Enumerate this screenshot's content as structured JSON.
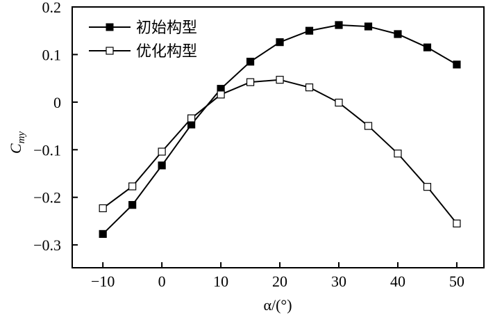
{
  "chart_data": {
    "type": "line",
    "title": "",
    "xlabel": "α/(°)",
    "ylabel_main": "C",
    "ylabel_sub": "my",
    "xlim": [
      -15.2,
      54.6
    ],
    "ylim": [
      -0.348,
      0.2
    ],
    "xticks": [
      -10,
      0,
      10,
      20,
      30,
      40,
      50
    ],
    "xtick_labels": [
      "−10",
      "0",
      "10",
      "20",
      "30",
      "40",
      "50"
    ],
    "yticks": [
      0.2,
      0.1,
      0,
      -0.1,
      -0.2,
      -0.3
    ],
    "ytick_labels": [
      "0.2",
      "0.1",
      "0",
      "−0.1",
      "−0.2",
      "−0.3"
    ],
    "grid": false,
    "legend_position": "top-left",
    "x": [
      -10,
      -5,
      0,
      5,
      10,
      15,
      20,
      25,
      30,
      35,
      40,
      45,
      50
    ],
    "series": [
      {
        "name": "初始构型",
        "marker": "filled-square",
        "values": [
          -0.277,
          -0.216,
          -0.133,
          -0.047,
          0.028,
          0.085,
          0.126,
          0.15,
          0.162,
          0.159,
          0.143,
          0.115,
          0.079
        ]
      },
      {
        "name": "优化构型",
        "marker": "open-square",
        "values": [
          -0.223,
          -0.177,
          -0.104,
          -0.034,
          0.016,
          0.042,
          0.047,
          0.031,
          -0.001,
          -0.05,
          -0.108,
          -0.178,
          -0.255
        ]
      }
    ]
  }
}
